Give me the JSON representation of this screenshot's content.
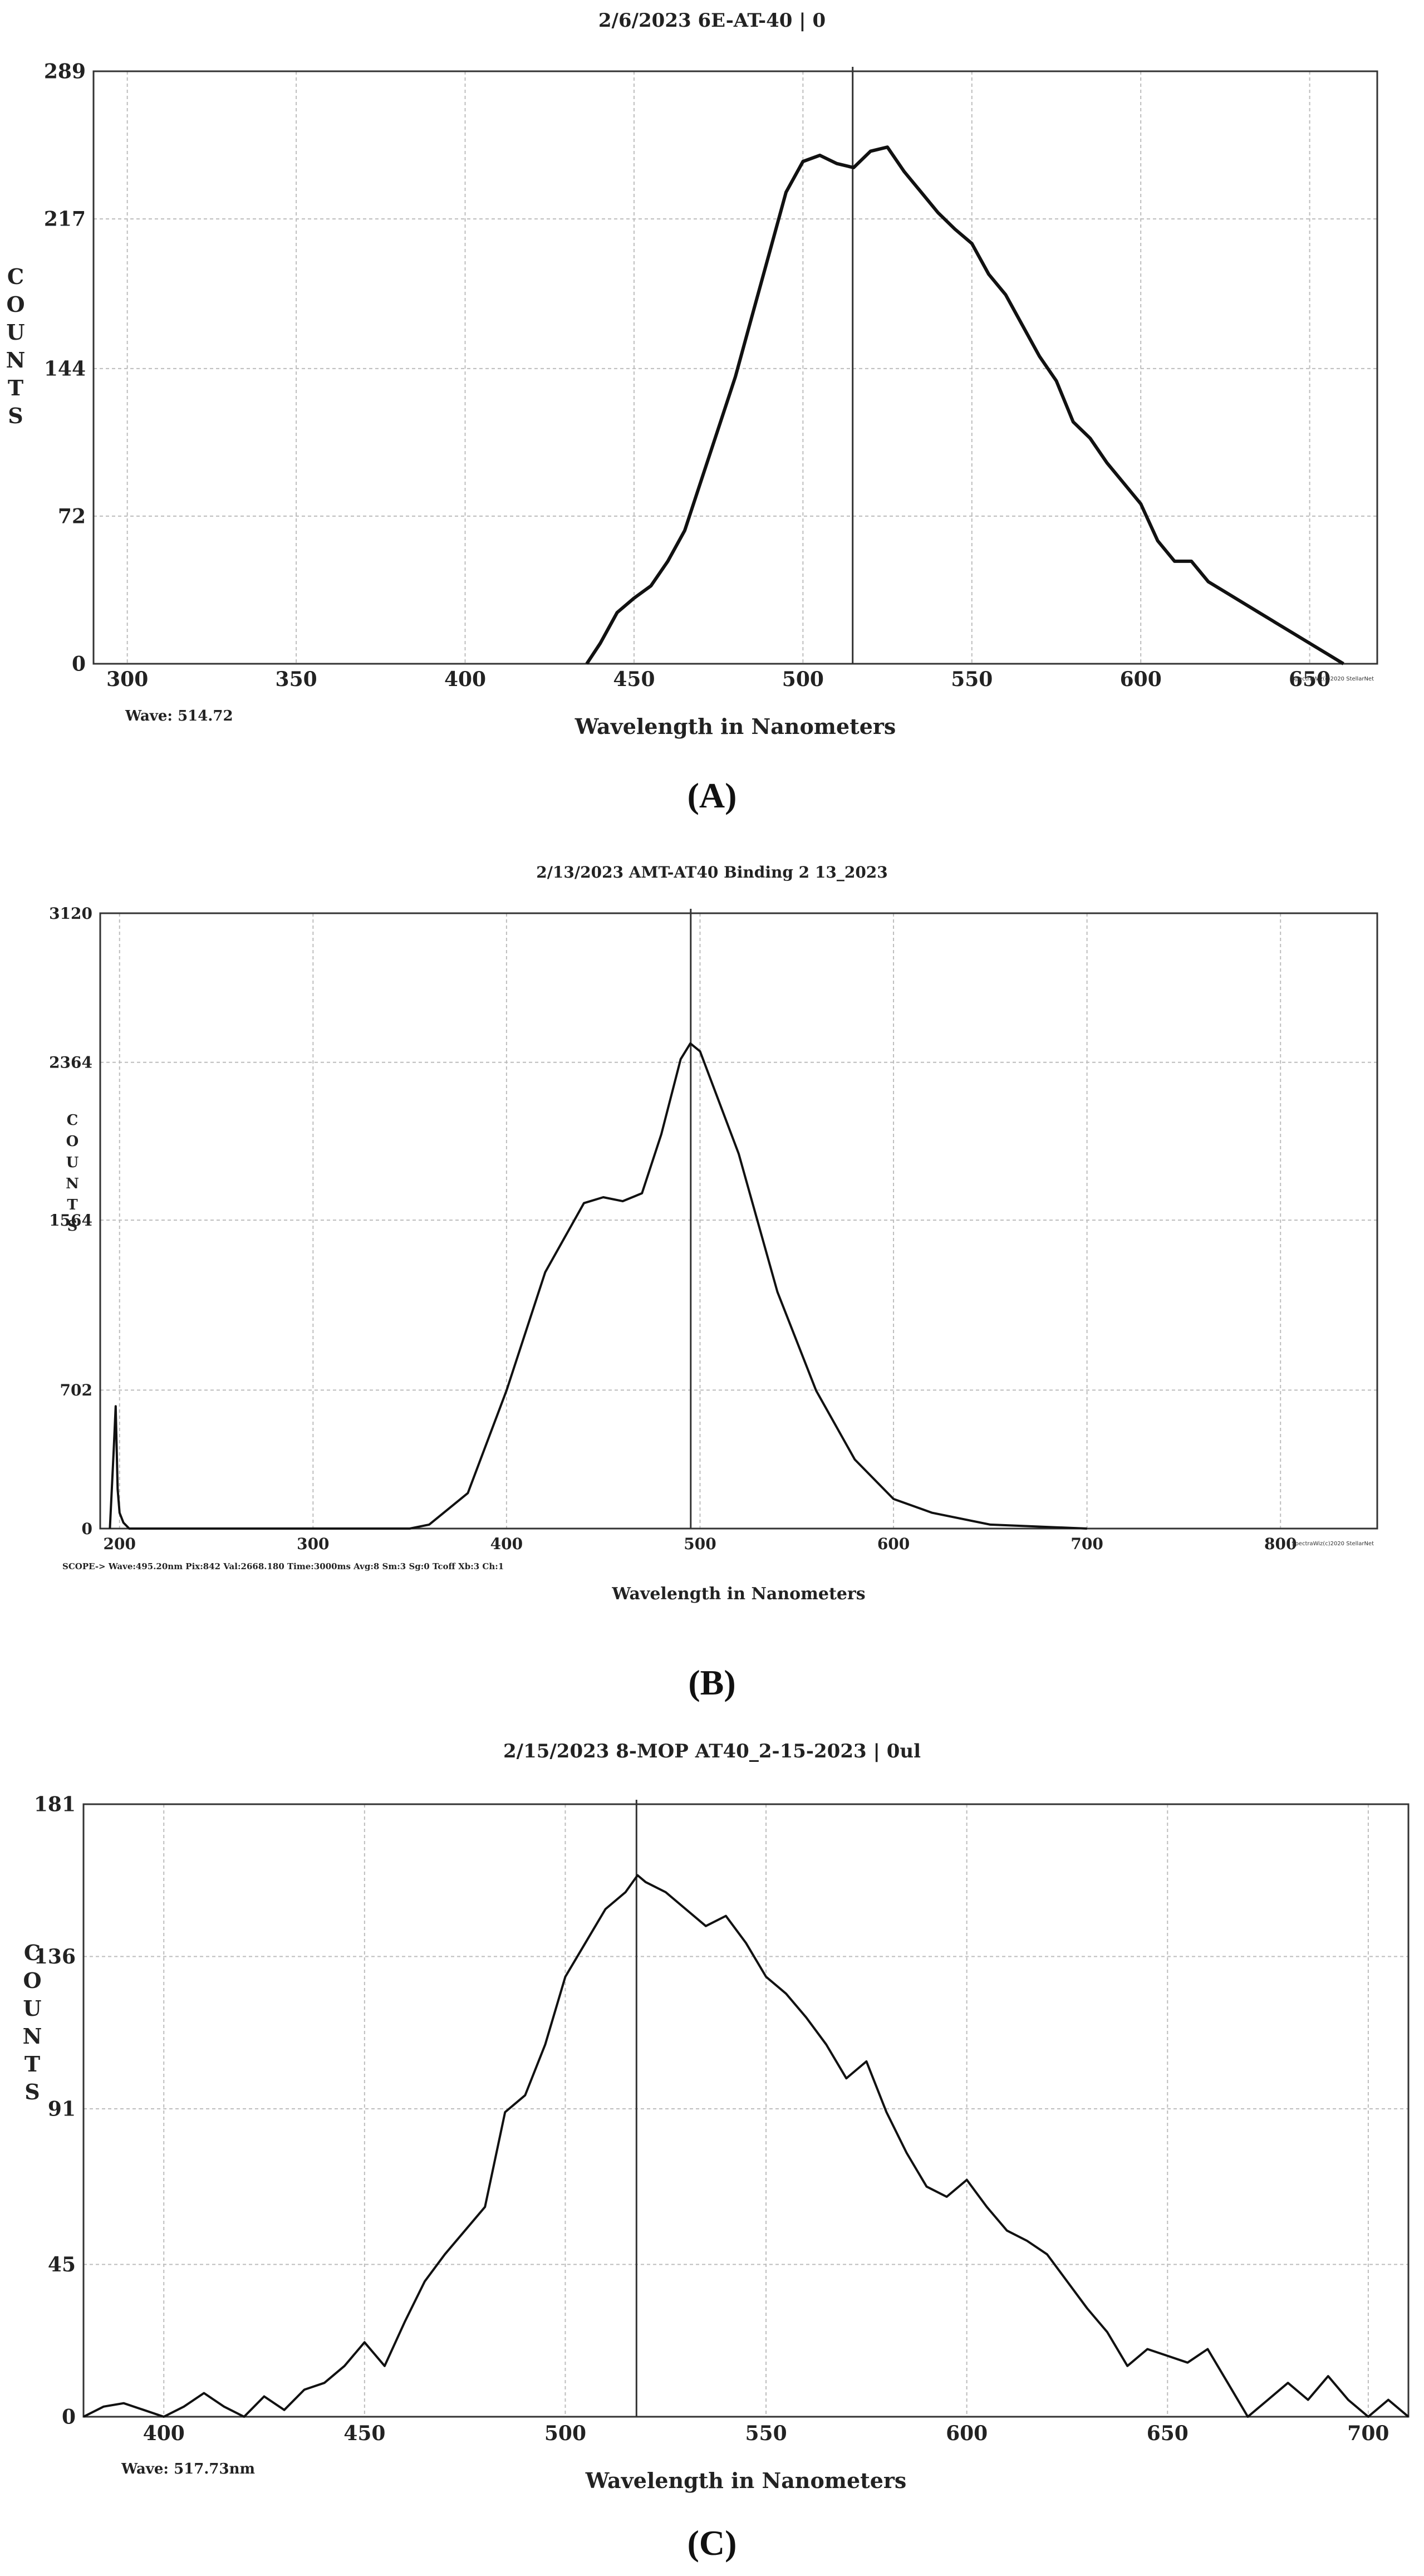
{
  "panel_labels": [
    "(A)",
    "(B)",
    "(C)"
  ],
  "chart_data": [
    {
      "type": "line",
      "title": "2/6/2023 6E-AT-40 | 0",
      "xlabel": "Wavelength in Nanometers",
      "ylabel": "COUNTS",
      "xlim": [
        290,
        670
      ],
      "ylim": [
        0,
        289
      ],
      "xticks": [
        300,
        350,
        400,
        450,
        500,
        550,
        600,
        650
      ],
      "yticks": [
        0,
        72,
        144,
        217,
        289
      ],
      "grid": true,
      "marker_wavelength": 514.72,
      "footer_text": "Wave: 514.72",
      "corner_text": "SpectraWiz(c)2020 StellarNet",
      "series": [
        {
          "x": [
            436,
            440,
            445,
            450,
            455,
            460,
            465,
            470,
            475,
            480,
            485,
            490,
            495,
            500,
            505,
            510,
            515,
            520,
            525,
            530,
            535,
            540,
            545,
            550,
            555,
            560,
            565,
            570,
            575,
            580,
            585,
            590,
            595,
            600,
            605,
            610,
            615,
            620,
            625,
            630,
            635,
            640,
            645,
            650,
            655,
            660
          ],
          "y": [
            0,
            10,
            25,
            32,
            38,
            50,
            65,
            90,
            115,
            140,
            170,
            200,
            230,
            245,
            248,
            244,
            242,
            250,
            252,
            240,
            230,
            220,
            212,
            205,
            190,
            180,
            165,
            150,
            138,
            118,
            110,
            98,
            88,
            78,
            60,
            50,
            50,
            40,
            35,
            30,
            25,
            20,
            15,
            10,
            5,
            0
          ]
        }
      ]
    },
    {
      "type": "line",
      "title": "2/13/2023  AMT-AT40 Binding 2 13_2023",
      "xlabel": "Wavelength in Nanometers",
      "ylabel": "COUNTS",
      "xlim": [
        190,
        850
      ],
      "ylim": [
        0,
        3120
      ],
      "xticks": [
        200,
        300,
        400,
        500,
        600,
        700,
        800
      ],
      "yticks": [
        0,
        702,
        1564,
        2364,
        3120
      ],
      "grid": true,
      "marker_wavelength": 495.2,
      "footer_text": "SCOPE->  Wave:495.20nm  Pix:842  Val:2668.180  Time:3000ms  Avg:8  Sm:3  Sg:0  Tcoff  Xb:3  Ch:1",
      "corner_text": "SpectraWiz(c)2020 StellarNet",
      "series": [
        {
          "x": [
            195,
            197,
            198,
            199,
            200,
            202,
            205,
            250,
            300,
            350,
            360,
            380,
            400,
            420,
            440,
            450,
            460,
            470,
            480,
            490,
            495,
            500,
            520,
            540,
            560,
            580,
            600,
            620,
            650,
            700
          ],
          "y": [
            0,
            400,
            620,
            200,
            80,
            30,
            0,
            0,
            0,
            0,
            20,
            180,
            700,
            1300,
            1650,
            1680,
            1660,
            1700,
            2000,
            2380,
            2460,
            2420,
            1900,
            1200,
            700,
            350,
            150,
            80,
            20,
            0
          ]
        }
      ]
    },
    {
      "type": "line",
      "title": "2/15/2023 8-MOP AT40_2-15-2023 | 0ul",
      "xlabel": "Wavelength in Nanometers",
      "ylabel": "COUNTS",
      "xlim": [
        380,
        710
      ],
      "ylim": [
        0,
        181
      ],
      "xticks": [
        400,
        450,
        500,
        550,
        600,
        650,
        700
      ],
      "yticks": [
        0,
        45,
        91,
        136,
        181
      ],
      "grid": true,
      "marker_wavelength": 517.73,
      "footer_text": "Wave: 517.73nm",
      "corner_text": "",
      "series": [
        {
          "x": [
            380,
            385,
            390,
            395,
            400,
            405,
            410,
            415,
            420,
            425,
            430,
            435,
            440,
            445,
            450,
            455,
            460,
            465,
            470,
            475,
            480,
            485,
            490,
            495,
            500,
            505,
            510,
            515,
            518,
            520,
            525,
            530,
            535,
            540,
            545,
            550,
            555,
            560,
            565,
            570,
            575,
            580,
            585,
            590,
            595,
            600,
            605,
            610,
            615,
            620,
            625,
            630,
            635,
            640,
            645,
            650,
            655,
            660,
            665,
            670,
            675,
            680,
            685,
            690,
            695,
            700,
            705,
            710
          ],
          "y": [
            0,
            3,
            4,
            2,
            0,
            3,
            7,
            3,
            0,
            6,
            2,
            8,
            10,
            15,
            22,
            15,
            28,
            40,
            48,
            55,
            62,
            90,
            95,
            110,
            130,
            140,
            150,
            155,
            160,
            158,
            155,
            150,
            145,
            148,
            140,
            130,
            125,
            118,
            110,
            100,
            105,
            90,
            78,
            68,
            65,
            70,
            62,
            55,
            52,
            48,
            40,
            32,
            25,
            15,
            20,
            18,
            16,
            20,
            10,
            0,
            5,
            10,
            5,
            12,
            5,
            0,
            5,
            0
          ]
        }
      ]
    }
  ]
}
